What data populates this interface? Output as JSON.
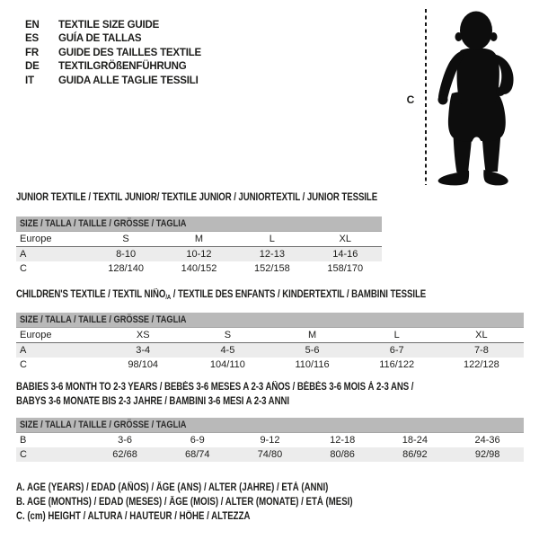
{
  "colors": {
    "background": "#ffffff",
    "text": "#1d1d1b",
    "size_bar_bg": "#b9b9b9",
    "row_band_bg": "#ececec",
    "rule_line": "#6f6f6f",
    "silhouette": "#0d0d0d"
  },
  "header": {
    "languages": [
      {
        "code": "EN",
        "label": "TEXTILE SIZE GUIDE"
      },
      {
        "code": "ES",
        "label": "GUÍA DE TALLAS"
      },
      {
        "code": "FR",
        "label": "GUIDE DES TAILLES TEXTILE"
      },
      {
        "code": "DE",
        "label": "TEXTILGRÖßENFÜHRUNG"
      },
      {
        "code": "IT",
        "label": "GUIDA ALLE TAGLIE TESSILI"
      }
    ]
  },
  "figure": {
    "measure_label": "C",
    "image_name": "toddler-silhouette"
  },
  "tables": [
    {
      "title_lines": [
        [
          {
            "text": "JUNIOR TEXTILE / TEXTIL JUNIOR/ TEXTILE JUNIOR / JUNIORTEXTIL / JUNIOR TESSILE",
            "sub": false
          }
        ]
      ],
      "size_header": "SIZE / TALLA / TAILLE / GRÖSSE / TAGLIA",
      "rows": [
        {
          "label": "Europe",
          "values": [
            "S",
            "M",
            "L",
            "XL"
          ],
          "band": false,
          "rule": false
        },
        {
          "label": "A",
          "values": [
            "8-10",
            "10-12",
            "12-13",
            "14-16"
          ],
          "band": true,
          "rule": true
        },
        {
          "label": "C",
          "values": [
            "128/140",
            "140/152",
            "152/158",
            "158/170"
          ],
          "band": false,
          "rule": false
        }
      ]
    },
    {
      "title_lines": [
        [
          {
            "text": "CHILDREN'S TEXTILE / TEXTIL NIÑO",
            "sub": false
          },
          {
            "text": "/A",
            "sub": true
          },
          {
            "text": " / TEXTILE DES ENFANTS / KINDERTEXTIL / BAMBINI TESSILE",
            "sub": false
          }
        ]
      ],
      "size_header": "SIZE / TALLA / TAILLE / GRÖSSE / TAGLIA",
      "rows": [
        {
          "label": "Europe",
          "values": [
            "XS",
            "S",
            "M",
            "L",
            "XL"
          ],
          "band": false,
          "rule": false
        },
        {
          "label": "A",
          "values": [
            "3-4",
            "4-5",
            "5-6",
            "6-7",
            "7-8"
          ],
          "band": true,
          "rule": true
        },
        {
          "label": "C",
          "values": [
            "98/104",
            "104/110",
            "110/116",
            "116/122",
            "122/128"
          ],
          "band": false,
          "rule": false
        }
      ]
    },
    {
      "title_lines": [
        [
          {
            "text": "BABIES 3-6 MONTH TO 2-3 YEARS / BEBÉS 3-6 MESES A 2-3 AÑOS / BÉBÉS 3-6 MOIS À 2-3 ANS /",
            "sub": false
          }
        ],
        [
          {
            "text": "BABYS 3-6 MONATE BIS 2-3 JAHRE / BAMBINI 3-6 MESI A 2-3 ANNI",
            "sub": false
          }
        ]
      ],
      "size_header": "SIZE / TALLA / TAILLE / GRÖSSE / TAGLIA",
      "rows": [
        {
          "label": "B",
          "values": [
            "3-6",
            "6-9",
            "9-12",
            "12-18",
            "18-24",
            "24-36"
          ],
          "band": false,
          "rule": true
        },
        {
          "label": "C",
          "values": [
            "62/68",
            "68/74",
            "74/80",
            "80/86",
            "86/92",
            "92/98"
          ],
          "band": true,
          "rule": false
        }
      ]
    }
  ],
  "notes": [
    "A. AGE (YEARS) / EDAD (AÑOS) / ÂGE (ANS) / ALTER (JAHRE) / ETÀ (ANNI)",
    "B. AGE (MONTHS) / EDAD (MESES) / ÂGE (MOIS) / ALTER (MONATE) / ETÀ (MESI)",
    "C. (cm) HEIGHT / ALTURA / HAUTEUR / HÖHE / ALTEZZA"
  ]
}
